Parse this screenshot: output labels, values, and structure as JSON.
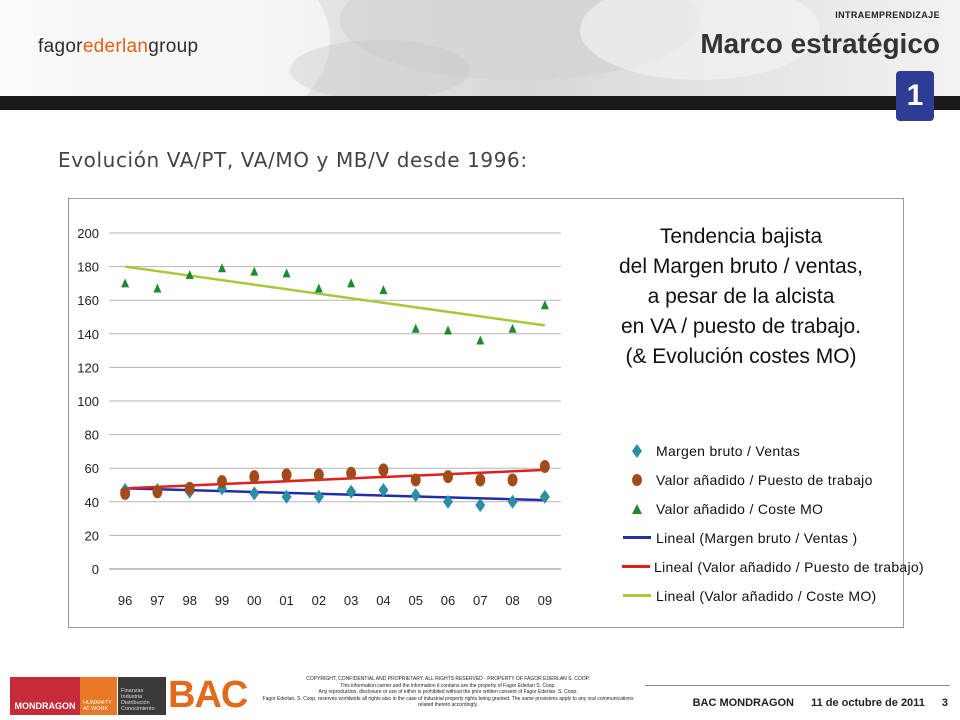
{
  "header": {
    "logo_prefix": "fagor",
    "logo_brand": "ederlan",
    "logo_suffix": "group",
    "top_label": "INTRAEMPRENDIZAJE",
    "section_title": "Marco estratégico",
    "section_number": "1"
  },
  "slide": {
    "subtitle": "Evolución VA/PT, VA/MO y MB/V desde 1996:"
  },
  "chart_data": {
    "type": "scatter",
    "title_lines": [
      "Tendencia bajista",
      "del Margen bruto / ventas,",
      "a pesar de la alcista",
      "en VA / puesto de trabajo.",
      "(& Evolución costes MO)"
    ],
    "x": [
      "96",
      "97",
      "98",
      "99",
      "00",
      "01",
      "02",
      "03",
      "04",
      "05",
      "06",
      "07",
      "08",
      "09"
    ],
    "y_ticks": [
      "0",
      "20",
      "40",
      "60",
      "80",
      "100",
      "120",
      "140",
      "160",
      "180",
      "200"
    ],
    "ylim": [
      0,
      200
    ],
    "grid": true,
    "series": [
      {
        "name": "Margen bruto / Ventas",
        "marker": "diamond",
        "color": "#2a8fa6",
        "values": [
          47,
          47,
          46,
          48,
          45,
          43,
          43,
          46,
          47,
          44,
          40,
          38,
          40,
          43
        ]
      },
      {
        "name": "Valor añadido / Puesto de trabajo",
        "marker": "circle",
        "color": "#a34a1a",
        "values": [
          45,
          46,
          48,
          52,
          55,
          56,
          56,
          57,
          59,
          53,
          55,
          53,
          53,
          61
        ]
      },
      {
        "name": "Valor añadido / Coste MO",
        "marker": "triangle",
        "color": "#1f8a2e",
        "values": [
          170,
          167,
          175,
          179,
          177,
          176,
          167,
          170,
          166,
          143,
          142,
          136,
          143,
          157
        ]
      }
    ],
    "trendlines": [
      {
        "name": "Lineal (Margen bruto / Ventas )",
        "color": "#1f2fa8",
        "start": 48,
        "end": 41
      },
      {
        "name": "Lineal (Valor añadido / Puesto de trabajo)",
        "color": "#e02020",
        "start": 48,
        "end": 59
      },
      {
        "name": "Lineal (Valor añadido / Coste MO)",
        "color": "#a6c93a",
        "start": 180,
        "end": 145
      }
    ]
  },
  "footer": {
    "mondragon": "MONDRAGON",
    "humanity_1": "HUMANITY",
    "humanity_2": "AT WORK",
    "finanzas_1": "Finanzas",
    "finanzas_2": "Industria",
    "finanzas_3": "Distribución",
    "finanzas_4": "Conocimiento",
    "bac": "BAC",
    "copyright_1": "COPYRIGHT, CONFIDENTIAL AND PROPRIETARY. ALL RIGHTS RESERVED - PROPERTY OF FAGOR EDERLAN S. COOP.",
    "copyright_2": "This information carrier and the information it contains are the property of Fagor Ederlan S. Coop.",
    "copyright_3": "Any reproduction, disclosure or use of either is prohibited without the prior written consent of Fagor Ederlan, S. Coop.",
    "copyright_4": "Fagor Ederlan, S. Coop. reserves worldwide all rights also in the case of industrial property rights being granted. The same provisions apply to any oral communications related thereto accordingly.",
    "org": "BAC MONDRAGON",
    "date": "11 de octubre de 2011",
    "page": "3"
  }
}
